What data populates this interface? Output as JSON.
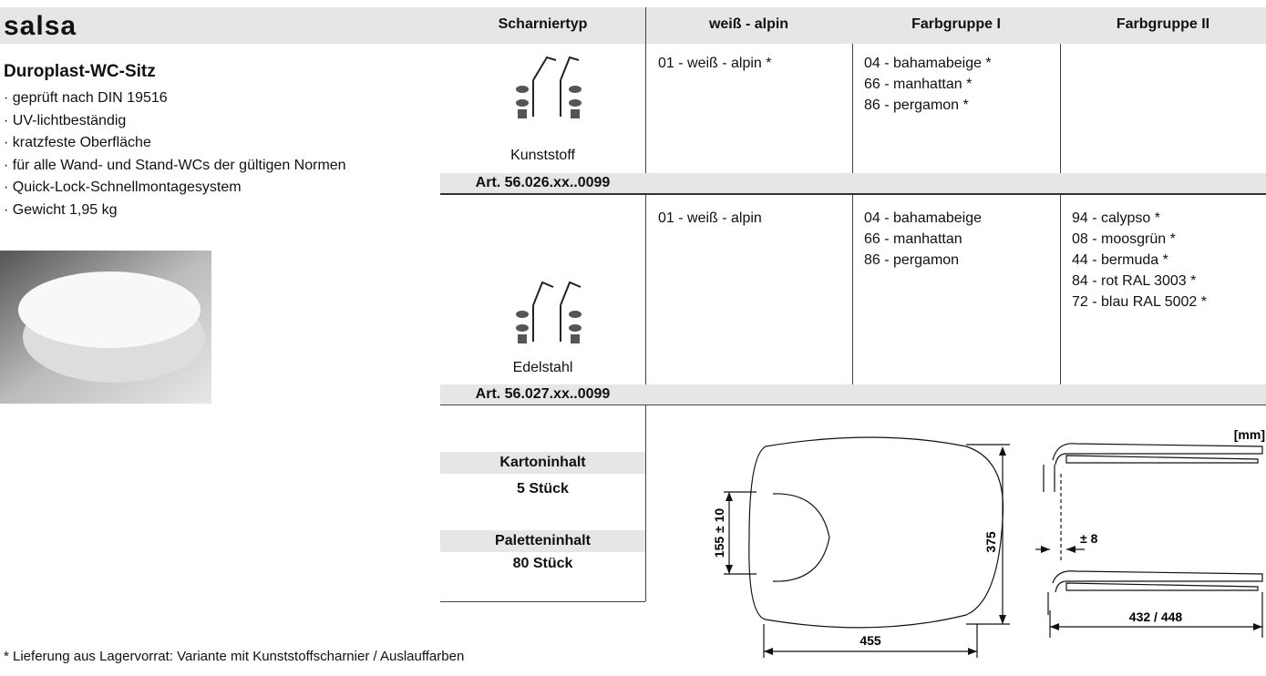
{
  "header": {
    "title": "salsa"
  },
  "product": {
    "name": "Duroplast-WC-Sitz",
    "features": [
      "· geprüft nach DIN 19516",
      "· UV-lichtbeständig",
      "· kratzfeste Oberfläche",
      "· für alle Wand- und Stand-WCs der gültigen Normen",
      "· Quick-Lock-Schnellmontagesystem",
      "· Gewicht 1,95 kg"
    ]
  },
  "table": {
    "columns": [
      "Scharniertyp",
      "weiß - alpin",
      "Farbgruppe I",
      "Farbgruppe II"
    ],
    "rows": [
      {
        "hinge": "Kunststoff",
        "article": "Art. 56.026.xx..0099",
        "white": [
          "01 - weiß - alpin *"
        ],
        "group1": [
          "04 - bahamabeige *",
          "66 - manhattan *",
          "86 - pergamon *"
        ]
      },
      {
        "hinge": "Edelstahl",
        "article": "Art. 56.027.xx..0099",
        "white": [
          "01 - weiß - alpin"
        ],
        "group1": [
          "04 - bahamabeige",
          "66 - manhattan",
          "86 - pergamon"
        ],
        "group2": [
          "94 - calypso *",
          "08 - moosgrün *",
          "44 - bermuda *",
          "84 - rot RAL 3003 *",
          "72 - blau RAL 5002 *"
        ]
      }
    ]
  },
  "packaging": {
    "carton_label": "Kartoninhalt",
    "carton_value": "5 Stück",
    "pallet_label": "Paletteninhalt",
    "pallet_value": "80 Stück"
  },
  "drawing": {
    "unit": "[mm]",
    "opening": "155 ± 10",
    "depth": "375",
    "width": "455",
    "offset": "± 8",
    "hinge_distance": "432 / 448"
  },
  "footnote": "* Lieferung aus Lagervorrat: Variante mit Kunststoffscharnier / Auslauffarben"
}
